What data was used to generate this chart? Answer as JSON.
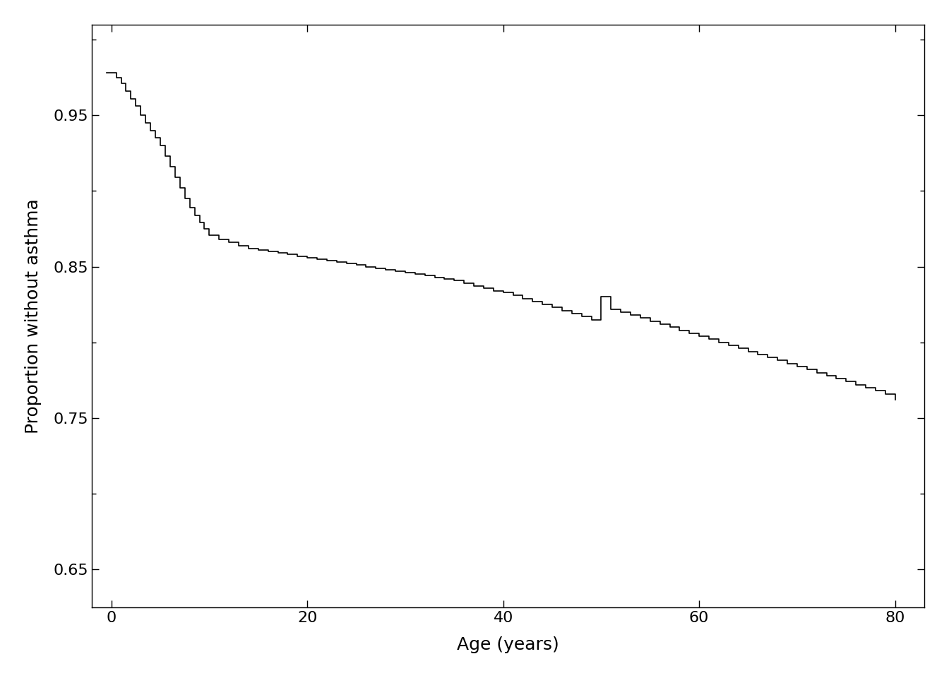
{
  "title": "",
  "xlabel": "Age (years)",
  "ylabel": "Proportion without asthma",
  "xlim": [
    -2,
    83
  ],
  "ylim": [
    0.625,
    1.01
  ],
  "yticks": [
    0.65,
    0.75,
    0.85,
    0.95
  ],
  "xticks": [
    0,
    20,
    40,
    60,
    80
  ],
  "background_color": "#ffffff",
  "line_color": "#000000",
  "line_width": 1.2,
  "steps_x": [
    -0.5,
    0.5,
    1.0,
    1.5,
    2.0,
    2.5,
    3.0,
    3.5,
    4.0,
    4.5,
    5.0,
    5.5,
    6.0,
    6.5,
    7.0,
    7.5,
    8.0,
    8.5,
    9.0,
    9.5,
    10.0,
    11.0,
    12.0,
    13.0,
    14.0,
    15.0,
    16.0,
    17.0,
    18.0,
    19.0,
    20.0,
    21.0,
    22.0,
    23.0,
    24.0,
    25.0,
    26.0,
    27.0,
    28.0,
    29.0,
    30.0,
    31.0,
    32.0,
    33.0,
    34.0,
    35.0,
    36.0,
    37.0,
    38.0,
    39.0,
    40.0,
    41.0,
    42.0,
    43.0,
    44.0,
    45.0,
    46.0,
    47.0,
    48.0,
    49.0,
    50.0,
    51.0,
    52.0,
    53.0,
    54.0,
    55.0,
    56.0,
    57.0,
    58.0,
    59.0,
    60.0,
    61.0,
    62.0,
    63.0,
    64.0,
    65.0,
    66.0,
    67.0,
    68.0,
    69.0,
    70.0,
    71.0,
    72.0,
    73.0,
    74.0,
    75.0,
    76.0,
    77.0,
    78.0,
    79.0,
    80.0
  ],
  "steps_y": [
    0.978,
    0.975,
    0.971,
    0.966,
    0.961,
    0.956,
    0.95,
    0.945,
    0.94,
    0.935,
    0.93,
    0.923,
    0.916,
    0.909,
    0.902,
    0.895,
    0.889,
    0.884,
    0.879,
    0.875,
    0.871,
    0.868,
    0.866,
    0.864,
    0.862,
    0.861,
    0.86,
    0.859,
    0.858,
    0.857,
    0.856,
    0.855,
    0.854,
    0.853,
    0.852,
    0.851,
    0.85,
    0.849,
    0.848,
    0.847,
    0.846,
    0.845,
    0.844,
    0.843,
    0.842,
    0.841,
    0.839,
    0.837,
    0.836,
    0.834,
    0.833,
    0.831,
    0.829,
    0.827,
    0.825,
    0.823,
    0.821,
    0.819,
    0.817,
    0.815,
    0.83,
    0.822,
    0.82,
    0.818,
    0.816,
    0.814,
    0.812,
    0.81,
    0.808,
    0.806,
    0.804,
    0.802,
    0.8,
    0.798,
    0.796,
    0.794,
    0.792,
    0.79,
    0.788,
    0.786,
    0.784,
    0.782,
    0.78,
    0.778,
    0.776,
    0.774,
    0.772,
    0.77,
    0.768,
    0.766,
    0.762
  ]
}
